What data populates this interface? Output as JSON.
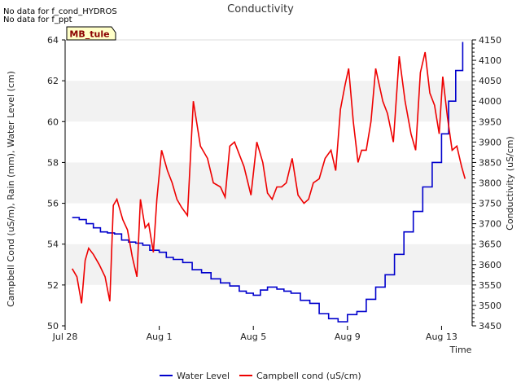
{
  "notes": [
    "No data for f_cond_HYDROS",
    "No data for f_ppt"
  ],
  "chart_data": {
    "type": "line",
    "title": "Conductivity",
    "site_badge": "MB_tule",
    "xlabel": "Time",
    "ylabel_left": "Campbell Cond (uS/m), Rain (mm), Water Level (cm)",
    "ylabel_right": "Conductivity (uS/cm)",
    "xlim": [
      0,
      17.3
    ],
    "x_ticks": [
      0,
      4,
      8,
      12,
      16
    ],
    "x_tick_labels": [
      "Jul 28",
      "Aug 1",
      "Aug 5",
      "Aug 9",
      "Aug 13"
    ],
    "ylim_left": [
      50,
      64
    ],
    "y_ticks_left": [
      50,
      52,
      54,
      56,
      58,
      60,
      62,
      64
    ],
    "y_tick_labels_left": [
      "50",
      "52",
      "54",
      "56",
      "58",
      "60",
      "62",
      "64"
    ],
    "ylim_right": [
      3450,
      4150
    ],
    "y_ticks_right": [
      3450,
      3500,
      3550,
      3600,
      3650,
      3700,
      3750,
      3800,
      3850,
      3900,
      3950,
      4000,
      4050,
      4100,
      4150
    ],
    "y_tick_labels_right": [
      "3450",
      "3500",
      "3550",
      "3600",
      "3650",
      "3700",
      "3750",
      "3800",
      "3850",
      "3900",
      "3950",
      "4000",
      "4050",
      "4100",
      "4150"
    ],
    "grid": "horizontal bands",
    "legend_position": "bottom-center",
    "series": [
      {
        "name": "Water Level",
        "axis": "left",
        "color": "#0000cc",
        "x": [
          0.3,
          0.6,
          0.9,
          1.2,
          1.5,
          1.8,
          2.1,
          2.4,
          2.7,
          3.0,
          3.3,
          3.6,
          4.0,
          4.3,
          4.6,
          5.0,
          5.4,
          5.8,
          6.2,
          6.6,
          7.0,
          7.4,
          7.7,
          8.0,
          8.3,
          8.6,
          9.0,
          9.3,
          9.6,
          10.0,
          10.4,
          10.8,
          11.2,
          11.6,
          12.0,
          12.4,
          12.8,
          13.2,
          13.6,
          14.0,
          14.4,
          14.8,
          15.2,
          15.6,
          16.0,
          16.3,
          16.6,
          16.9
        ],
        "values": [
          55.3,
          55.2,
          55.0,
          54.8,
          54.6,
          54.55,
          54.5,
          54.2,
          54.1,
          54.05,
          53.95,
          53.7,
          53.6,
          53.35,
          53.25,
          53.1,
          52.75,
          52.6,
          52.3,
          52.1,
          51.95,
          51.7,
          51.6,
          51.5,
          51.75,
          51.9,
          51.8,
          51.7,
          51.6,
          51.25,
          51.1,
          50.6,
          50.35,
          50.2,
          50.55,
          50.7,
          51.3,
          51.9,
          52.5,
          53.5,
          54.6,
          55.6,
          56.8,
          58.0,
          59.4,
          61.0,
          62.5,
          63.9
        ]
      },
      {
        "name": "Campbell cond (uS/cm)",
        "axis": "right",
        "color": "#ee0000",
        "x": [
          0.3,
          0.5,
          0.7,
          0.85,
          1.0,
          1.2,
          1.45,
          1.7,
          1.9,
          2.05,
          2.2,
          2.45,
          2.65,
          2.85,
          3.05,
          3.2,
          3.4,
          3.55,
          3.75,
          3.9,
          4.1,
          4.35,
          4.55,
          4.75,
          4.95,
          5.2,
          5.45,
          5.75,
          6.05,
          6.3,
          6.6,
          6.8,
          7.0,
          7.2,
          7.4,
          7.6,
          7.9,
          8.15,
          8.4,
          8.6,
          8.8,
          9.0,
          9.2,
          9.4,
          9.65,
          9.9,
          10.15,
          10.35,
          10.55,
          10.8,
          11.05,
          11.3,
          11.5,
          11.7,
          11.9,
          12.05,
          12.25,
          12.45,
          12.6,
          12.8,
          13.0,
          13.2,
          13.5,
          13.7,
          13.95,
          14.2,
          14.45,
          14.7,
          14.9,
          15.1,
          15.3,
          15.5,
          15.7,
          15.9,
          16.05,
          16.25,
          16.45,
          16.65,
          16.85,
          17.0
        ],
        "values": [
          3590,
          3570,
          3505,
          3610,
          3640,
          3625,
          3600,
          3570,
          3510,
          3745,
          3760,
          3710,
          3685,
          3620,
          3570,
          3760,
          3690,
          3700,
          3630,
          3760,
          3880,
          3830,
          3800,
          3760,
          3740,
          3720,
          4000,
          3890,
          3860,
          3800,
          3790,
          3765,
          3890,
          3900,
          3870,
          3840,
          3770,
          3900,
          3850,
          3775,
          3760,
          3790,
          3790,
          3800,
          3860,
          3770,
          3750,
          3760,
          3800,
          3810,
          3860,
          3880,
          3830,
          3980,
          4040,
          4080,
          3950,
          3850,
          3880,
          3880,
          3950,
          4080,
          4000,
          3970,
          3900,
          4110,
          4000,
          3920,
          3880,
          4070,
          4120,
          4020,
          3990,
          3920,
          4060,
          3960,
          3880,
          3890,
          3840,
          3810
        ]
      }
    ]
  }
}
